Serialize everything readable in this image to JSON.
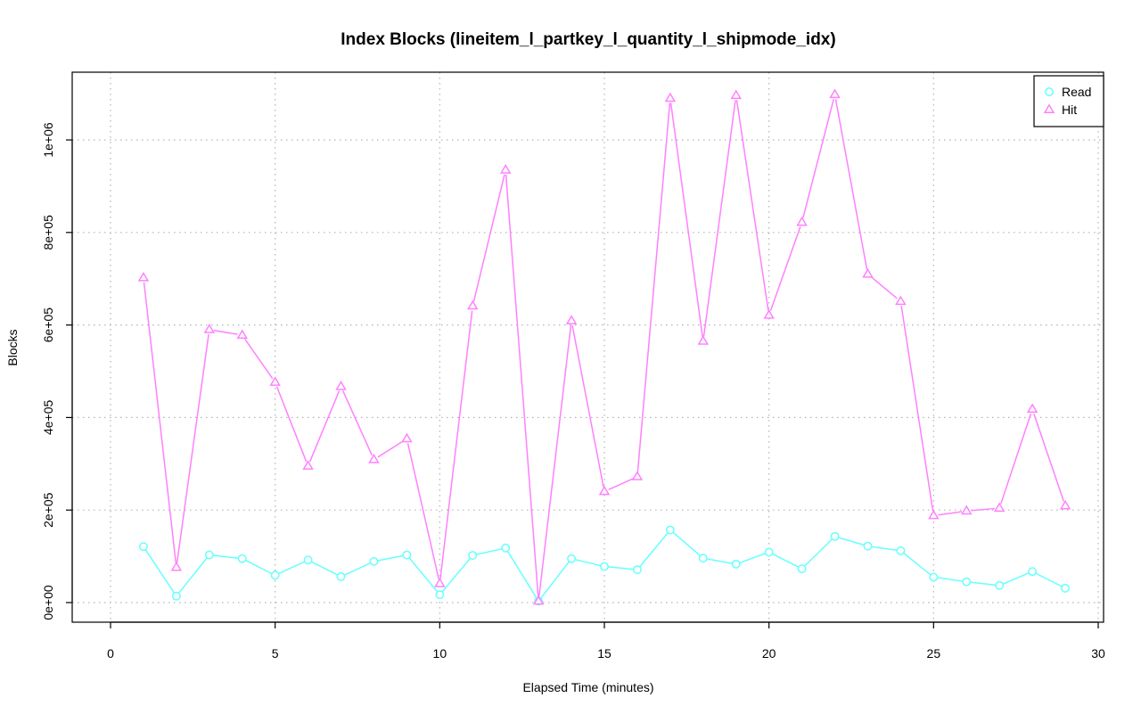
{
  "chart_data": {
    "type": "line",
    "title": "Index Blocks (lineitem_l_partkey_l_quantity_l_shipmode_idx)",
    "xlabel": "Elapsed Time (minutes)",
    "ylabel": "Blocks",
    "xlim": [
      0,
      30
    ],
    "ylim": [
      0,
      1100000
    ],
    "x_ticks": [
      0,
      5,
      10,
      15,
      20,
      25,
      30
    ],
    "x_tick_labels": [
      "0",
      "5",
      "10",
      "15",
      "20",
      "25",
      "30"
    ],
    "y_ticks": [
      0,
      200000,
      400000,
      600000,
      800000,
      1000000
    ],
    "y_tick_labels": [
      "0e+00",
      "2e+05",
      "4e+05",
      "6e+05",
      "8e+05",
      "1e+06"
    ],
    "grid": true,
    "legend_position": "top-right",
    "x": [
      1,
      2,
      3,
      4,
      5,
      6,
      7,
      8,
      9,
      10,
      11,
      12,
      13,
      14,
      15,
      16,
      17,
      18,
      19,
      20,
      21,
      22,
      23,
      24,
      25,
      26,
      27,
      28,
      29
    ],
    "series": [
      {
        "name": "Read",
        "color": "#66FFFF",
        "marker": "circle",
        "values": [
          121000,
          14000,
          103000,
          95000,
          59000,
          92000,
          56000,
          89000,
          103000,
          17000,
          102000,
          118000,
          3000,
          95000,
          78000,
          71000,
          157000,
          96000,
          83000,
          109000,
          73000,
          143000,
          122000,
          112000,
          55000,
          45000,
          37000,
          67000,
          31000
        ]
      },
      {
        "name": "Hit",
        "color": "#FF80FF",
        "marker": "triangle",
        "values": [
          702000,
          76000,
          590000,
          578000,
          476000,
          295000,
          467000,
          309000,
          354000,
          41000,
          641000,
          935000,
          3000,
          609000,
          240000,
          272000,
          1090000,
          565000,
          1096000,
          621000,
          822000,
          1098000,
          710000,
          651000,
          188000,
          198000,
          204000,
          418000,
          209000
        ]
      }
    ]
  }
}
